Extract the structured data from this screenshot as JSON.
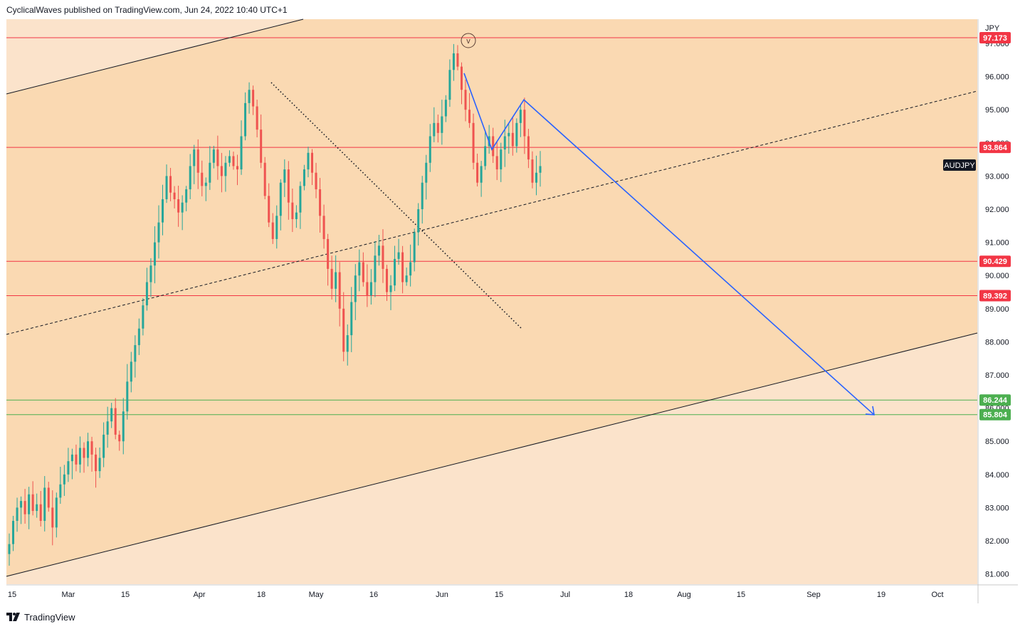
{
  "header": {
    "publisher_text": "CyclicalWaves published on TradingView.com, Jun 24, 2022 10:40 UTC+1"
  },
  "footer": {
    "brand": "TradingView",
    "logo_icon": "tradingview-logo-icon"
  },
  "colors": {
    "background": "#ffffff",
    "band_outer": "#fbe3cb",
    "band_inner": "#fad9b2",
    "candle_up": "#26a69a",
    "candle_down": "#ef5350",
    "resistance_red": "#f23645",
    "support_green": "#4caf50",
    "projection_blue": "#2962ff",
    "trend_black": "#131722",
    "label_dark": "#131722"
  },
  "chart_data": {
    "type": "candlestick",
    "symbol": "AUDJPY",
    "currency": "JPY",
    "x_tick_labels": [
      "15",
      "Mar",
      "15",
      "Apr",
      "18",
      "May",
      "16",
      "Jun",
      "15",
      "Jul",
      "18",
      "Aug",
      "15",
      "Sep",
      "19",
      "Oct"
    ],
    "y_tick_labels": [
      "81.000",
      "82.000",
      "83.000",
      "84.000",
      "85.000",
      "86.000",
      "87.000",
      "88.000",
      "89.000",
      "90.000",
      "91.000",
      "92.000",
      "93.000",
      "94.000",
      "95.000",
      "96.000",
      "97.000"
    ],
    "ylim": [
      80.6,
      97.9
    ],
    "grid": false,
    "wave_label": "v",
    "price_lines": [
      {
        "value": 97.173,
        "label": "97.173",
        "color": "#f23645"
      },
      {
        "value": 93.864,
        "label": "93.864",
        "color": "#f23645"
      },
      {
        "value": 90.429,
        "label": "90.429",
        "color": "#f23645"
      },
      {
        "value": 89.392,
        "label": "89.392",
        "color": "#f23645"
      },
      {
        "value": 86.244,
        "label": "86.244",
        "color": "#4caf50"
      },
      {
        "value": 85.804,
        "label": "85.804",
        "color": "#4caf50"
      }
    ],
    "symbol_price_tag": {
      "label": "AUDJPY",
      "value": 93.3
    },
    "price_path_close": [
      81.9,
      82.6,
      83.0,
      83.2,
      82.8,
      83.4,
      82.9,
      83.1,
      82.6,
      83.6,
      83.0,
      82.4,
      83.3,
      83.7,
      84.0,
      84.4,
      84.6,
      84.3,
      84.8,
      84.5,
      85.0,
      84.6,
      84.1,
      84.5,
      85.2,
      85.6,
      86.0,
      85.2,
      85.0,
      85.9,
      86.8,
      87.4,
      87.9,
      88.4,
      89.1,
      89.8,
      90.3,
      91.0,
      91.6,
      92.3,
      93.0,
      92.5,
      92.3,
      91.9,
      92.2,
      92.6,
      93.3,
      93.8,
      93.1,
      92.7,
      92.8,
      93.4,
      93.8,
      93.3,
      93.0,
      93.4,
      93.6,
      93.3,
      93.2,
      94.2,
      95.2,
      95.6,
      95.1,
      94.4,
      93.4,
      92.4,
      91.6,
      91.1,
      91.8,
      92.8,
      93.2,
      92.2,
      91.7,
      91.9,
      92.7,
      93.2,
      93.7,
      93.1,
      92.6,
      91.8,
      91.1,
      90.2,
      89.6,
      90.1,
      89.0,
      87.7,
      88.2,
      89.2,
      90.0,
      90.4,
      89.8,
      89.4,
      89.8,
      90.6,
      90.9,
      90.2,
      89.5,
      89.7,
      90.5,
      90.7,
      89.8,
      90.0,
      90.4,
      91.3,
      92.0,
      92.8,
      93.4,
      94.2,
      94.6,
      94.3,
      94.8,
      95.3,
      96.2,
      96.7,
      96.3,
      95.6,
      95.0,
      94.6,
      93.4,
      92.8,
      93.3,
      93.9,
      94.2,
      93.6,
      93.2,
      93.8,
      94.2,
      94.3,
      93.9,
      94.6,
      95.0,
      94.2,
      93.5,
      92.8,
      93.1,
      93.3
    ],
    "trend_lines": [
      {
        "name": "upper-channel",
        "style": "solid",
        "color": "#131722"
      },
      {
        "name": "lower-channel",
        "style": "solid",
        "color": "#131722"
      },
      {
        "name": "mid-channel",
        "style": "dashed",
        "color": "#131722"
      },
      {
        "name": "descending-trendline",
        "style": "dotted",
        "color": "#131722"
      }
    ],
    "projection": [
      {
        "date": "Jun 7",
        "value": 96.1
      },
      {
        "date": "Jun 14",
        "value": 93.8
      },
      {
        "date": "Jun 21",
        "value": 95.3
      },
      {
        "date": "Sep 17",
        "value": 85.8
      }
    ]
  }
}
